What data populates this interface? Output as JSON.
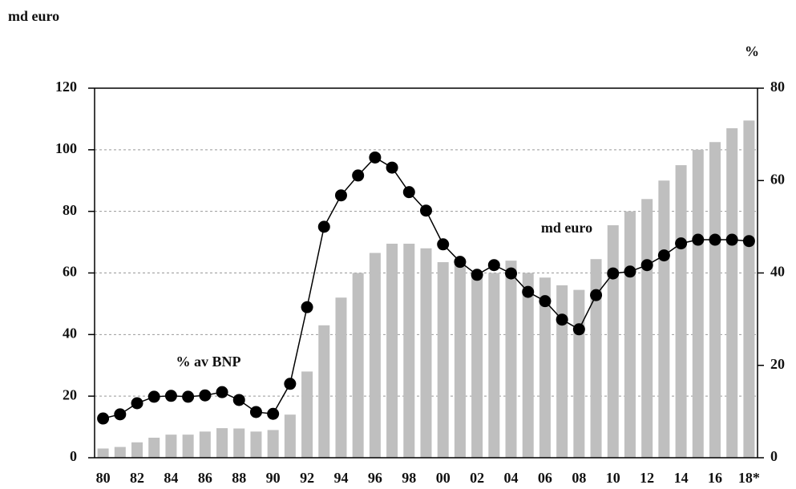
{
  "chart_data": {
    "type": "bar-line",
    "ylabel": "md euro",
    "y2label": "%",
    "categories": [
      "80",
      null,
      "82",
      null,
      "84",
      null,
      "86",
      null,
      "88",
      null,
      "90",
      null,
      "92",
      null,
      "94",
      null,
      "96",
      null,
      "98",
      null,
      "00",
      null,
      "02",
      null,
      "04",
      null,
      "06",
      null,
      "08",
      null,
      "10",
      null,
      "12",
      null,
      "14",
      null,
      "16",
      null,
      "18*"
    ],
    "series": [
      {
        "name": "md euro",
        "type": "bar",
        "color": "#bfbfbf",
        "axis": "y",
        "values": [
          3,
          3.5,
          5,
          6.5,
          7.5,
          7.5,
          8.5,
          9.6,
          9.5,
          8.5,
          9,
          14,
          28,
          43,
          52,
          60,
          66.5,
          69.5,
          69.5,
          68,
          63.5,
          63,
          59,
          60,
          64,
          60,
          58.5,
          56,
          54.5,
          64.5,
          75.5,
          80,
          84,
          90,
          95,
          100,
          102.5,
          107,
          109.5
        ]
      },
      {
        "name": "% av BNP",
        "type": "line",
        "color": "#000000",
        "axis": "y2",
        "values": [
          8.5,
          9.4,
          11.8,
          13.2,
          13.4,
          13.2,
          13.5,
          14.2,
          12.5,
          9.9,
          9.5,
          16,
          32.6,
          50,
          56.8,
          61.1,
          65,
          62.8,
          57.5,
          53.5,
          46.2,
          42.4,
          39.6,
          41.7,
          39.9,
          35.9,
          33.9,
          29.9,
          27.8,
          35.2,
          39.9,
          40.3,
          41.7,
          43.8,
          46.4,
          47.2,
          47.2,
          47.2,
          46.9
        ]
      }
    ],
    "ylim": [
      0,
      120
    ],
    "yticks": [
      0,
      20,
      40,
      60,
      80,
      100,
      120
    ],
    "y2lim": [
      0,
      80
    ],
    "y2ticks": [
      0,
      20,
      40,
      60,
      80
    ],
    "grid": true
  }
}
